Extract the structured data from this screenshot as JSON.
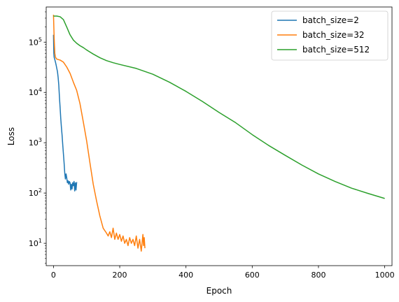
{
  "chart_data": {
    "type": "line",
    "xlabel": "Epoch",
    "ylabel": "Loss",
    "xlim": [
      -22,
      1022
    ],
    "ylim": [
      3.6,
      500000
    ],
    "yscale": "log",
    "x_ticks": [
      0,
      200,
      400,
      600,
      800,
      1000
    ],
    "x_tick_labels": [
      "0",
      "200",
      "400",
      "600",
      "800",
      "1000"
    ],
    "y_ticks": [
      10,
      100,
      1000,
      10000,
      100000
    ],
    "y_tick_labels": [
      {
        "base": "10",
        "exp": "1"
      },
      {
        "base": "10",
        "exp": "2"
      },
      {
        "base": "10",
        "exp": "3"
      },
      {
        "base": "10",
        "exp": "4"
      },
      {
        "base": "10",
        "exp": "5"
      }
    ],
    "grid": false,
    "legend_position": "top-right",
    "series": [
      {
        "name": "batch_size=2",
        "color": "#1f77b4",
        "x": [
          0,
          1,
          2,
          4,
          6,
          8,
          10,
          12,
          14,
          16,
          18,
          20,
          22,
          24,
          26,
          28,
          30,
          32,
          34,
          36,
          38,
          40,
          42,
          44,
          46,
          48,
          50,
          52,
          54,
          56,
          58,
          60,
          62,
          64,
          66,
          68,
          70
        ],
        "y": [
          140000,
          60000,
          50000,
          45000,
          40000,
          35000,
          30000,
          26000,
          20000,
          14000,
          8000,
          5000,
          3000,
          2000,
          1400,
          900,
          600,
          400,
          250,
          190,
          240,
          200,
          160,
          175,
          150,
          170,
          160,
          115,
          150,
          120,
          160,
          140,
          170,
          110,
          160,
          115,
          165
        ]
      },
      {
        "name": "batch_size=32",
        "color": "#ff7f0e",
        "x": [
          0,
          2,
          4,
          6,
          10,
          20,
          30,
          40,
          50,
          60,
          70,
          80,
          90,
          100,
          110,
          120,
          130,
          140,
          150,
          160,
          165,
          170,
          175,
          180,
          185,
          190,
          195,
          200,
          205,
          210,
          215,
          220,
          225,
          230,
          235,
          240,
          245,
          250,
          255,
          260,
          265,
          270,
          272,
          274,
          276
        ],
        "y": [
          350000,
          120000,
          60000,
          50000,
          46000,
          44000,
          40000,
          32000,
          24000,
          16000,
          11000,
          6000,
          2600,
          1100,
          400,
          150,
          70,
          35,
          20,
          16,
          14,
          17,
          13,
          20,
          12,
          16,
          12,
          15,
          11,
          14,
          10,
          12,
          9,
          13,
          10,
          12,
          9,
          14,
          8,
          12,
          7,
          15,
          9,
          13,
          8
        ]
      },
      {
        "name": "batch_size=512",
        "color": "#2ca02c",
        "x": [
          0,
          10,
          20,
          30,
          40,
          50,
          60,
          70,
          80,
          90,
          100,
          120,
          140,
          160,
          180,
          200,
          250,
          300,
          350,
          400,
          450,
          500,
          550,
          600,
          650,
          700,
          750,
          800,
          850,
          900,
          950,
          1000
        ],
        "y": [
          330000,
          330000,
          320000,
          280000,
          200000,
          140000,
          110000,
          95000,
          85000,
          78000,
          70000,
          58000,
          49000,
          43000,
          39000,
          36000,
          30000,
          23000,
          16000,
          10500,
          6600,
          4000,
          2500,
          1450,
          880,
          560,
          360,
          240,
          170,
          125,
          98,
          78
        ]
      }
    ]
  }
}
